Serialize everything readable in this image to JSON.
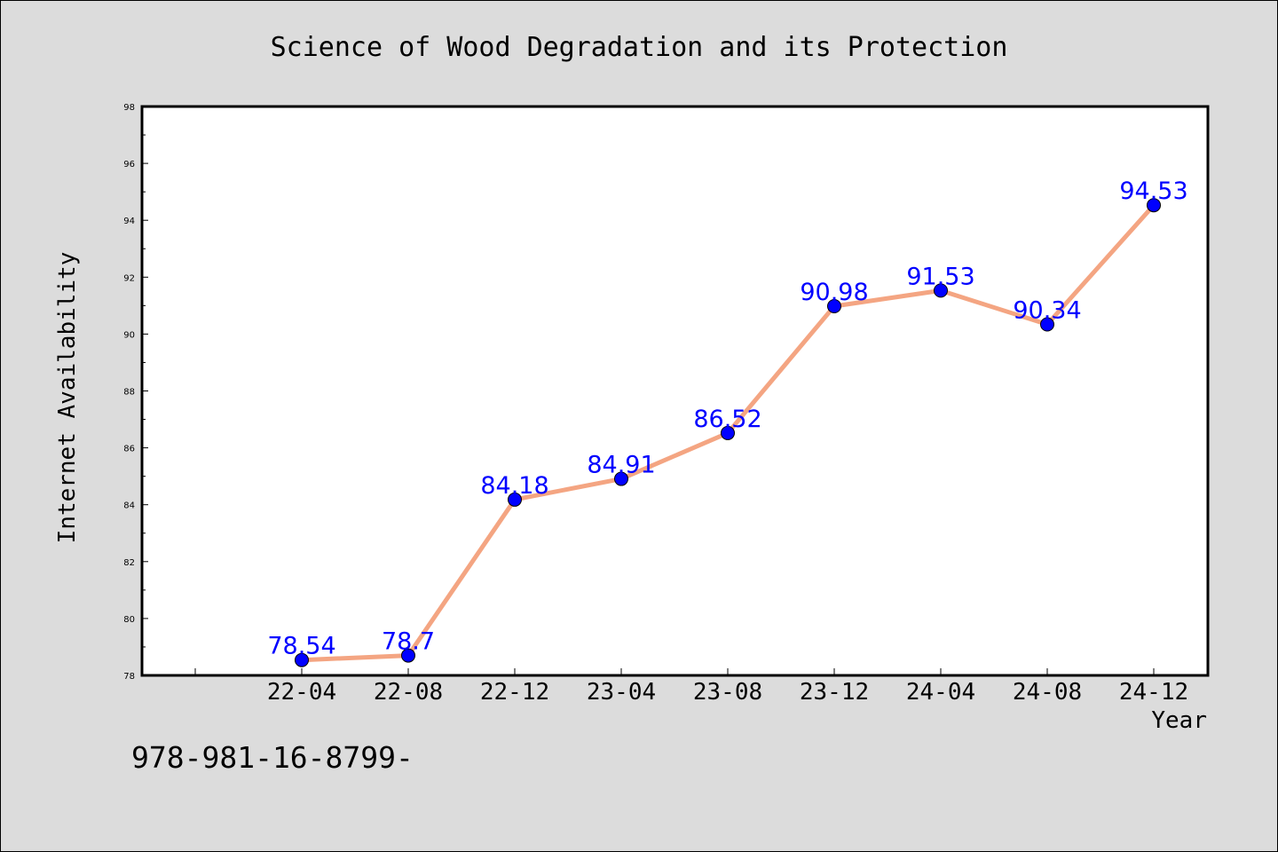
{
  "chart_data": {
    "type": "line",
    "title": "Science of Wood Degradation and its Protection",
    "xlabel": "Year",
    "ylabel": "Internet Availability",
    "categories": [
      "22-04",
      "22-08",
      "22-12",
      "23-04",
      "23-08",
      "23-12",
      "24-04",
      "24-08",
      "24-12"
    ],
    "values": [
      78.54,
      78.7,
      84.18,
      84.91,
      86.52,
      90.98,
      91.53,
      90.34,
      94.53
    ],
    "data_labels": [
      "78.54",
      "78.7",
      "84.18",
      "84.91",
      "86.52",
      "90.98",
      "91.53",
      "90.34",
      "94.53"
    ],
    "ylim": [
      78,
      98
    ],
    "yticks": [
      78,
      80,
      82,
      84,
      86,
      88,
      90,
      92,
      94,
      96,
      98
    ],
    "ytick_labels": [
      "78",
      "80",
      "82",
      "84",
      "86",
      "88",
      "90",
      "92",
      "94",
      "96",
      "98"
    ],
    "grid": false,
    "line_color": "#f4a582",
    "marker_color": "#0000ff",
    "label_color": "#0000ff"
  },
  "footer": {
    "isbn": "978-981-16-8799-"
  }
}
